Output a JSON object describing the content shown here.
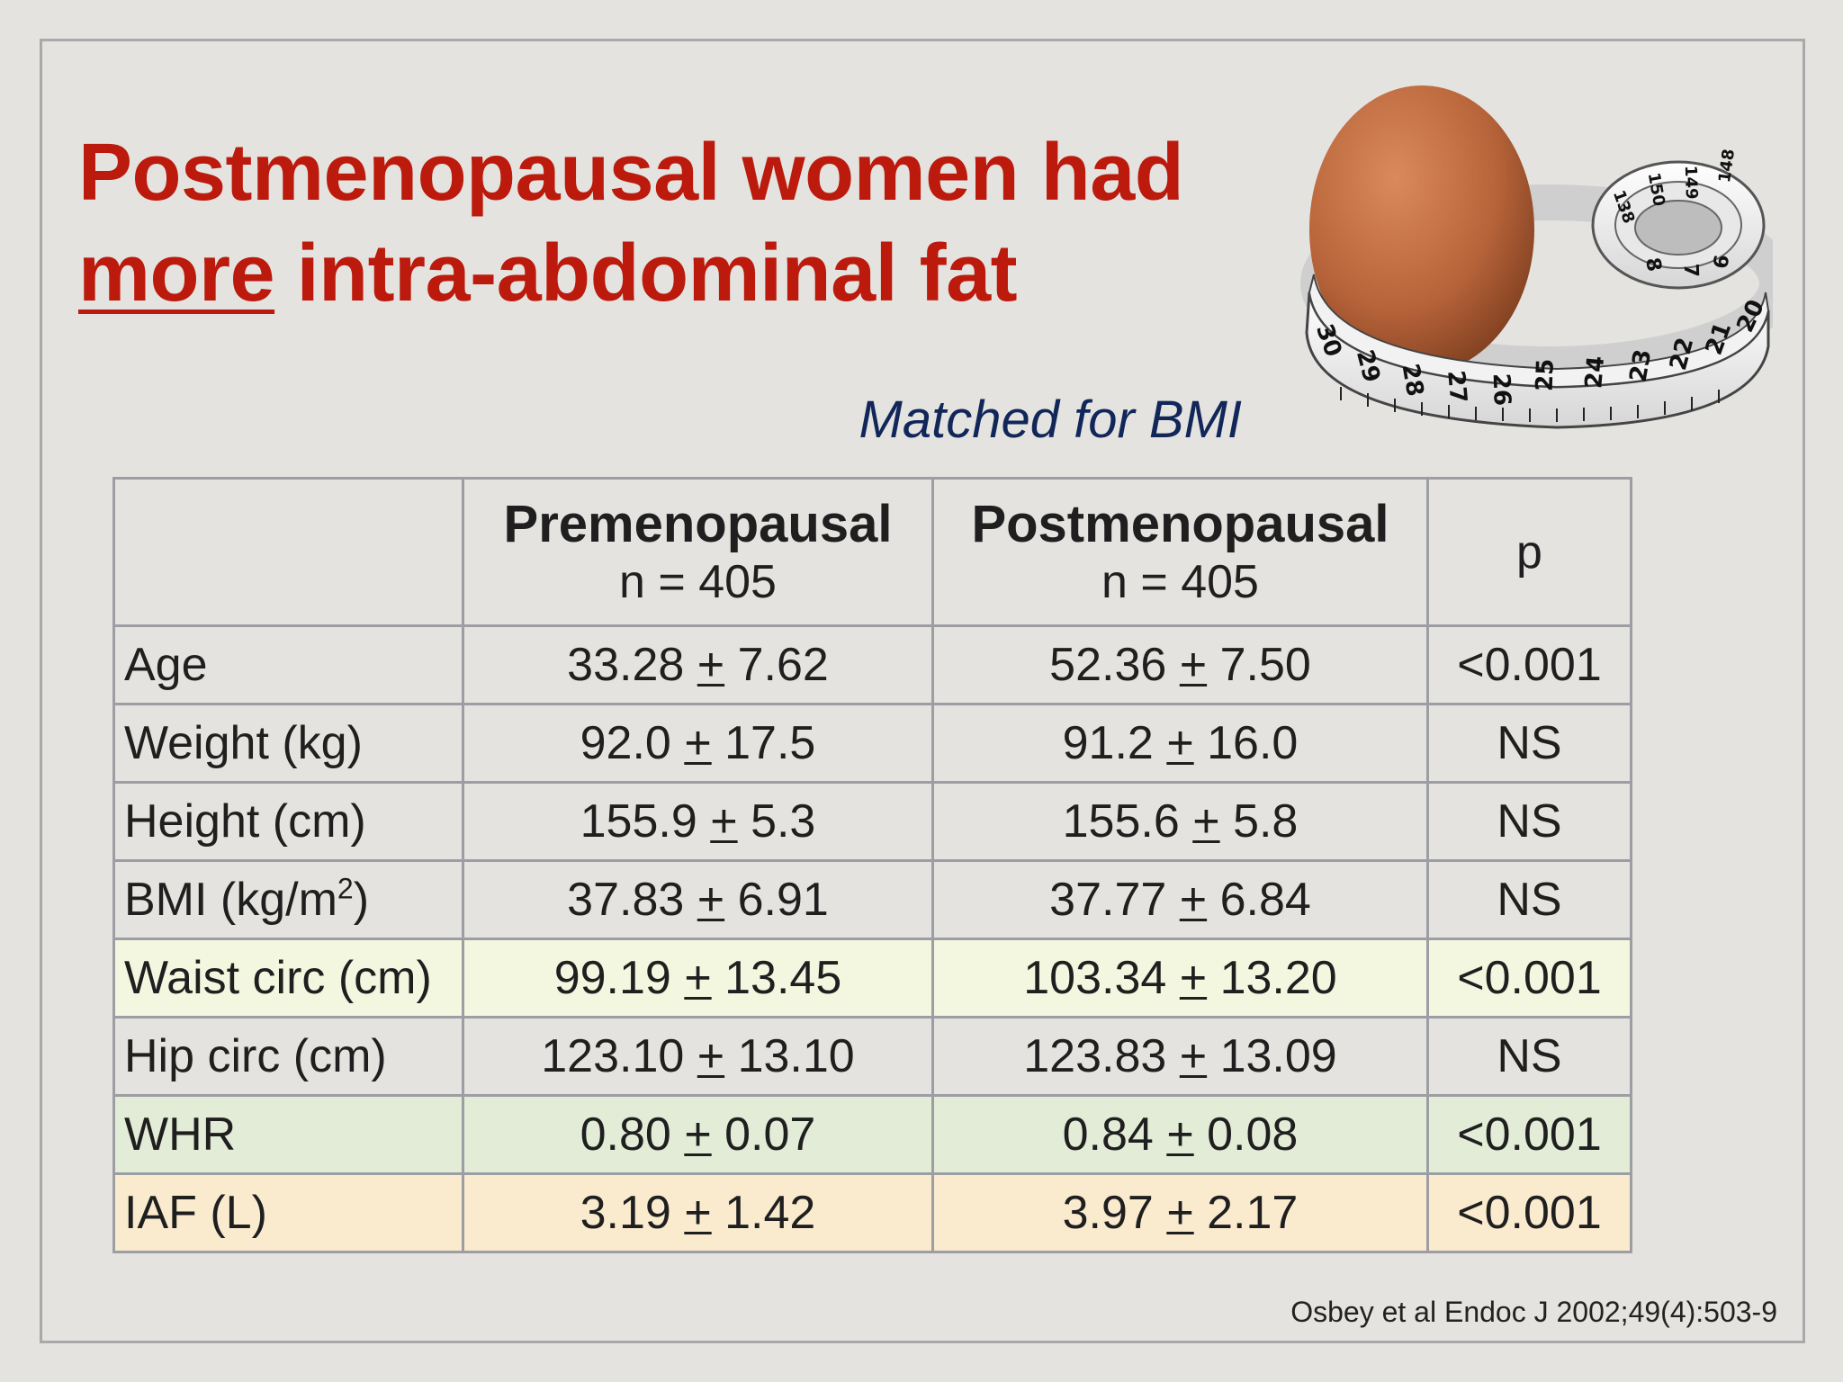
{
  "slide": {
    "title_line1": "Postmenopausal women had",
    "title_emphasis": "more",
    "title_line2_rest": " intra-abdominal fat",
    "subtitle": "Matched for BMI",
    "illustration_icon": "egg-with-tape-measure",
    "tape_numbers": [
      "30",
      "29",
      "28",
      "27",
      "26",
      "25",
      "24",
      "23",
      "22",
      "21",
      "20",
      "138",
      "150",
      "149",
      "148",
      "8",
      "7",
      "6"
    ],
    "citation": "Osbey et al Endoc J 2002;49(4):503-9"
  },
  "table": {
    "pm_symbol": "+",
    "headers": {
      "col1_name": "Premenopausal",
      "col1_n": "n = 405",
      "col2_name": "Postmenopausal",
      "col2_n": "n = 405",
      "p": "p"
    },
    "rows": [
      {
        "label": "Age",
        "pre_mean": "33.28",
        "pre_sd": "7.62",
        "post_mean": "52.36",
        "post_sd": "7.50",
        "p": "<0.001",
        "highlight": "none"
      },
      {
        "label": "Weight (kg)",
        "pre_mean": "92.0",
        "pre_sd": "17.5",
        "post_mean": "91.2",
        "post_sd": "16.0",
        "p": "NS",
        "highlight": "none"
      },
      {
        "label": "Height (cm)",
        "pre_mean": "155.9",
        "pre_sd": "5.3",
        "post_mean": "155.6",
        "post_sd": "5.8",
        "p": "NS",
        "highlight": "none"
      },
      {
        "label": "BMI (kg/m",
        "label_sup": "2",
        "label_suffix": ")",
        "pre_mean": "37.83",
        "pre_sd": "6.91",
        "post_mean": "37.77",
        "post_sd": "6.84",
        "p": "NS",
        "highlight": "none"
      },
      {
        "label": "Waist circ (cm)",
        "pre_mean": "99.19",
        "pre_sd": "13.45",
        "post_mean": "103.34",
        "post_sd": "13.20",
        "p": "<0.001",
        "highlight": "#f4f7df"
      },
      {
        "label": "Hip circ (cm)",
        "pre_mean": "123.10",
        "pre_sd": "13.10",
        "post_mean": "123.83",
        "post_sd": "13.09",
        "p": "NS",
        "highlight": "none"
      },
      {
        "label": "WHR",
        "pre_mean": "0.80",
        "pre_sd": "0.07",
        "post_mean": "0.84",
        "post_sd": "0.08",
        "p": "<0.001",
        "highlight": "#e2ecd6"
      },
      {
        "label": "IAF (L)",
        "pre_mean": "3.19",
        "pre_sd": "1.42",
        "post_mean": "3.97",
        "post_sd": "2.17",
        "p": "<0.001",
        "highlight": "#faebcf"
      }
    ]
  },
  "colors": {
    "title": "#bb1a0c",
    "subtitle": "#11275a",
    "background": "#e4e3df",
    "table_border": "#9d9ea3"
  }
}
